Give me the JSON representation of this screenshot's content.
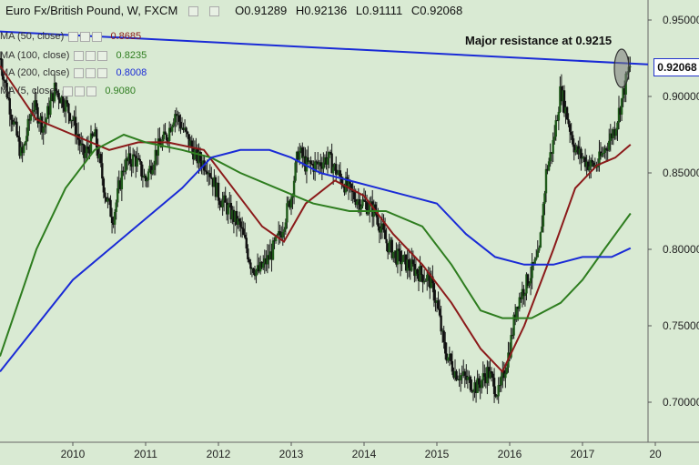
{
  "header": {
    "symbol": "Euro Fx/British Pound, W, FXCM",
    "open": "O0.91289",
    "high": "H0.92136",
    "low": "L0.91111",
    "close": "C0.92068"
  },
  "indicators": [
    {
      "label": "MA (50, close)",
      "value": "0.8685",
      "color": "#8b1a1a"
    },
    {
      "label": "MA (100, close)",
      "value": "0.8235",
      "color": "#2e7d1f"
    },
    {
      "label": "MA (200, close)",
      "value": "0.8008",
      "color": "#1a2bd6"
    },
    {
      "label": "MA (5, close)",
      "value": "0.9080",
      "color": "#2e7d1f"
    }
  ],
  "annotation": "Major resistance at 0.9215",
  "current_price": "0.92068",
  "colors": {
    "background": "#d9ead3",
    "resistance_line": "#1a2bd6",
    "candle": "#1a1a1a",
    "ma50": "#8b1a1a",
    "ma100": "#2e7d1f",
    "ma200": "#1a2bd6",
    "highlight_ellipse": "#555555"
  },
  "chart_data": {
    "type": "candlestick",
    "title": "Euro Fx/British Pound, W, FXCM",
    "x_ticks": [
      "2010",
      "2011",
      "2012",
      "2013",
      "2014",
      "2015",
      "2016",
      "2017",
      "20"
    ],
    "y_ticks": [
      "0.95000",
      "0.90000",
      "0.85000",
      "0.80000",
      "0.75000",
      "0.70000"
    ],
    "ylim": [
      0.685,
      0.96
    ],
    "xlim": [
      2009.0,
      2017.9
    ],
    "price_path": [
      [
        2009.0,
        0.925
      ],
      [
        2009.15,
        0.89
      ],
      [
        2009.3,
        0.86
      ],
      [
        2009.45,
        0.895
      ],
      [
        2009.6,
        0.88
      ],
      [
        2009.75,
        0.905
      ],
      [
        2009.9,
        0.895
      ],
      [
        2010.0,
        0.885
      ],
      [
        2010.15,
        0.86
      ],
      [
        2010.3,
        0.875
      ],
      [
        2010.45,
        0.835
      ],
      [
        2010.55,
        0.82
      ],
      [
        2010.7,
        0.855
      ],
      [
        2010.85,
        0.86
      ],
      [
        2011.0,
        0.845
      ],
      [
        2011.15,
        0.865
      ],
      [
        2011.3,
        0.875
      ],
      [
        2011.4,
        0.89
      ],
      [
        2011.55,
        0.875
      ],
      [
        2011.7,
        0.86
      ],
      [
        2011.85,
        0.855
      ],
      [
        2012.0,
        0.835
      ],
      [
        2012.15,
        0.825
      ],
      [
        2012.3,
        0.815
      ],
      [
        2012.45,
        0.79
      ],
      [
        2012.55,
        0.785
      ],
      [
        2012.7,
        0.795
      ],
      [
        2012.85,
        0.81
      ],
      [
        2013.0,
        0.835
      ],
      [
        2013.1,
        0.865
      ],
      [
        2013.2,
        0.855
      ],
      [
        2013.35,
        0.855
      ],
      [
        2013.5,
        0.86
      ],
      [
        2013.7,
        0.845
      ],
      [
        2013.85,
        0.835
      ],
      [
        2014.0,
        0.83
      ],
      [
        2014.15,
        0.825
      ],
      [
        2014.3,
        0.805
      ],
      [
        2014.45,
        0.795
      ],
      [
        2014.6,
        0.79
      ],
      [
        2014.75,
        0.785
      ],
      [
        2014.9,
        0.78
      ],
      [
        2015.0,
        0.765
      ],
      [
        2015.1,
        0.735
      ],
      [
        2015.25,
        0.72
      ],
      [
        2015.4,
        0.715
      ],
      [
        2015.55,
        0.71
      ],
      [
        2015.7,
        0.72
      ],
      [
        2015.85,
        0.705
      ],
      [
        2016.0,
        0.735
      ],
      [
        2016.1,
        0.765
      ],
      [
        2016.2,
        0.775
      ],
      [
        2016.3,
        0.785
      ],
      [
        2016.4,
        0.795
      ],
      [
        2016.5,
        0.85
      ],
      [
        2016.6,
        0.87
      ],
      [
        2016.7,
        0.905
      ],
      [
        2016.8,
        0.885
      ],
      [
        2016.9,
        0.865
      ],
      [
        2017.0,
        0.86
      ],
      [
        2017.1,
        0.855
      ],
      [
        2017.2,
        0.855
      ],
      [
        2017.3,
        0.865
      ],
      [
        2017.45,
        0.88
      ],
      [
        2017.55,
        0.9
      ],
      [
        2017.62,
        0.915
      ],
      [
        2017.66,
        0.9207
      ]
    ],
    "series": [
      {
        "name": "MA (50, close)",
        "points": [
          [
            2009.0,
            0.92
          ],
          [
            2009.5,
            0.885
          ],
          [
            2010.0,
            0.875
          ],
          [
            2010.5,
            0.865
          ],
          [
            2010.9,
            0.87
          ],
          [
            2011.3,
            0.87
          ],
          [
            2011.8,
            0.865
          ],
          [
            2012.2,
            0.84
          ],
          [
            2012.6,
            0.815
          ],
          [
            2012.9,
            0.805
          ],
          [
            2013.2,
            0.83
          ],
          [
            2013.6,
            0.845
          ],
          [
            2014.0,
            0.835
          ],
          [
            2014.4,
            0.81
          ],
          [
            2014.8,
            0.79
          ],
          [
            2015.2,
            0.765
          ],
          [
            2015.6,
            0.735
          ],
          [
            2015.9,
            0.72
          ],
          [
            2016.2,
            0.75
          ],
          [
            2016.6,
            0.8
          ],
          [
            2016.9,
            0.84
          ],
          [
            2017.2,
            0.855
          ],
          [
            2017.45,
            0.86
          ],
          [
            2017.66,
            0.8685
          ]
        ]
      },
      {
        "name": "MA (100, close)",
        "points": [
          [
            2009.0,
            0.73
          ],
          [
            2009.5,
            0.8
          ],
          [
            2009.9,
            0.84
          ],
          [
            2010.3,
            0.865
          ],
          [
            2010.7,
            0.875
          ],
          [
            2011.0,
            0.87
          ],
          [
            2011.5,
            0.865
          ],
          [
            2011.9,
            0.86
          ],
          [
            2012.3,
            0.85
          ],
          [
            2012.8,
            0.84
          ],
          [
            2013.3,
            0.83
          ],
          [
            2013.8,
            0.825
          ],
          [
            2014.3,
            0.825
          ],
          [
            2014.8,
            0.815
          ],
          [
            2015.2,
            0.79
          ],
          [
            2015.6,
            0.76
          ],
          [
            2015.9,
            0.755
          ],
          [
            2016.3,
            0.755
          ],
          [
            2016.7,
            0.765
          ],
          [
            2017.0,
            0.78
          ],
          [
            2017.3,
            0.8
          ],
          [
            2017.66,
            0.8235
          ]
        ]
      },
      {
        "name": "MA (200, close)",
        "points": [
          [
            2009.0,
            0.72
          ],
          [
            2009.5,
            0.75
          ],
          [
            2010.0,
            0.78
          ],
          [
            2010.5,
            0.8
          ],
          [
            2011.0,
            0.82
          ],
          [
            2011.5,
            0.84
          ],
          [
            2011.9,
            0.86
          ],
          [
            2012.3,
            0.865
          ],
          [
            2012.7,
            0.865
          ],
          [
            2013.0,
            0.86
          ],
          [
            2013.4,
            0.85
          ],
          [
            2013.8,
            0.845
          ],
          [
            2014.2,
            0.84
          ],
          [
            2014.6,
            0.835
          ],
          [
            2015.0,
            0.83
          ],
          [
            2015.4,
            0.81
          ],
          [
            2015.8,
            0.795
          ],
          [
            2016.2,
            0.79
          ],
          [
            2016.6,
            0.79
          ],
          [
            2017.0,
            0.795
          ],
          [
            2017.4,
            0.795
          ],
          [
            2017.66,
            0.8008
          ]
        ]
      }
    ],
    "resistance_line": [
      [
        2009.0,
        0.9425
      ],
      [
        2017.9,
        0.921
      ]
    ],
    "grid": false,
    "legend": "top-left"
  }
}
